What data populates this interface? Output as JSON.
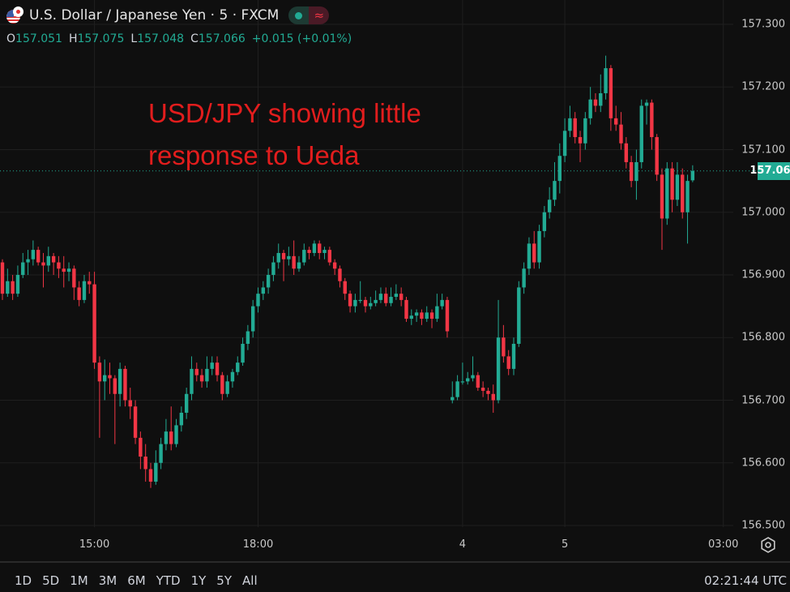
{
  "header": {
    "title": "U.S. Dollar / Japanese Yen · 5 · FXCM",
    "ohlc": {
      "o_label": "O",
      "o": "157.051",
      "h_label": "H",
      "h": "157.075",
      "l_label": "L",
      "l": "157.048",
      "c_label": "C",
      "c": "157.066",
      "change": "+0.015 (+0.01%)"
    },
    "icons": [
      "us-flag-icon",
      "japan-flag-icon",
      "market-open-dot-icon",
      "wave-icon"
    ]
  },
  "annotation": {
    "line1": "USD/JPY showing little",
    "line2": "response to Ueda"
  },
  "current_price": "157.066",
  "time_axis_settings_icon": "gear-icon",
  "bottom_bar": {
    "ranges": [
      "1D",
      "5D",
      "1M",
      "3M",
      "6M",
      "YTD",
      "1Y",
      "5Y",
      "All"
    ],
    "clock": "02:21:44 UTC"
  },
  "colors": {
    "background": "#0f0f0f",
    "up": "#22ab94",
    "down": "#f23645",
    "annotation": "#e21d1d",
    "grid": "#1f1f1f"
  },
  "chart_data": {
    "type": "candlestick",
    "title": "U.S. Dollar / Japanese Yen · 5 · FXCM",
    "interval": "5",
    "ylim": [
      156.5,
      157.3
    ],
    "y_ticks": [
      "157.300",
      "157.200",
      "157.100",
      "157.000",
      "156.900",
      "156.800",
      "156.700",
      "156.600",
      "156.500"
    ],
    "x_ticks": [
      {
        "label": "15:00",
        "index": 18
      },
      {
        "label": "18:00",
        "index": 50
      },
      {
        "label": "4",
        "index": 90
      },
      {
        "label": "5",
        "index": 110
      },
      {
        "label": "03:00",
        "index": 141
      }
    ],
    "grid": true,
    "candles_format": [
      "open",
      "high",
      "low",
      "close"
    ],
    "candles": [
      [
        156.92,
        156.925,
        156.86,
        156.87
      ],
      [
        156.87,
        156.91,
        156.865,
        156.89
      ],
      [
        156.89,
        156.9,
        156.86,
        156.87
      ],
      [
        156.87,
        156.915,
        156.865,
        156.9
      ],
      [
        156.9,
        156.935,
        156.895,
        156.92
      ],
      [
        156.92,
        156.94,
        156.9,
        156.925
      ],
      [
        156.925,
        156.955,
        156.915,
        156.94
      ],
      [
        156.94,
        156.945,
        156.915,
        156.92
      ],
      [
        156.92,
        156.935,
        156.88,
        156.915
      ],
      [
        156.915,
        156.945,
        156.905,
        156.93
      ],
      [
        156.93,
        156.935,
        156.9,
        156.92
      ],
      [
        156.92,
        156.93,
        156.895,
        156.91
      ],
      [
        156.91,
        156.93,
        156.88,
        156.905
      ],
      [
        156.905,
        156.92,
        156.89,
        156.91
      ],
      [
        156.91,
        156.915,
        156.86,
        156.88
      ],
      [
        156.88,
        156.89,
        156.85,
        156.86
      ],
      [
        156.86,
        156.9,
        156.855,
        156.89
      ],
      [
        156.89,
        156.905,
        156.87,
        156.885
      ],
      [
        156.885,
        156.905,
        156.75,
        156.76
      ],
      [
        156.76,
        156.77,
        156.64,
        156.73
      ],
      [
        156.73,
        156.765,
        156.7,
        156.74
      ],
      [
        156.74,
        156.76,
        156.71,
        156.735
      ],
      [
        156.735,
        156.74,
        156.63,
        156.71
      ],
      [
        156.71,
        156.76,
        156.69,
        156.75
      ],
      [
        156.75,
        156.755,
        156.69,
        156.7
      ],
      [
        156.7,
        156.72,
        156.67,
        156.69
      ],
      [
        156.69,
        156.7,
        156.63,
        156.64
      ],
      [
        156.64,
        156.65,
        156.59,
        156.61
      ],
      [
        156.61,
        156.63,
        156.57,
        156.59
      ],
      [
        156.59,
        156.6,
        156.56,
        156.57
      ],
      [
        156.57,
        156.62,
        156.565,
        156.6
      ],
      [
        156.6,
        156.64,
        156.59,
        156.63
      ],
      [
        156.63,
        156.67,
        156.62,
        156.65
      ],
      [
        156.65,
        156.69,
        156.62,
        156.63
      ],
      [
        156.63,
        156.67,
        156.625,
        156.66
      ],
      [
        156.66,
        156.69,
        156.65,
        156.68
      ],
      [
        156.68,
        156.72,
        156.67,
        156.71
      ],
      [
        156.71,
        156.77,
        156.7,
        156.75
      ],
      [
        156.75,
        156.76,
        156.73,
        156.74
      ],
      [
        156.74,
        156.75,
        156.72,
        156.73
      ],
      [
        156.73,
        156.77,
        156.72,
        156.75
      ],
      [
        156.75,
        156.77,
        156.74,
        156.76
      ],
      [
        156.76,
        156.77,
        156.73,
        156.74
      ],
      [
        156.74,
        156.745,
        156.7,
        156.71
      ],
      [
        156.71,
        156.74,
        156.705,
        156.73
      ],
      [
        156.73,
        156.75,
        156.72,
        156.745
      ],
      [
        156.745,
        156.77,
        156.74,
        156.76
      ],
      [
        156.76,
        156.8,
        156.755,
        156.79
      ],
      [
        156.79,
        156.82,
        156.78,
        156.81
      ],
      [
        156.81,
        156.86,
        156.8,
        156.85
      ],
      [
        156.85,
        156.88,
        156.84,
        156.87
      ],
      [
        156.87,
        156.89,
        156.86,
        156.88
      ],
      [
        156.88,
        156.91,
        156.87,
        156.9
      ],
      [
        156.9,
        156.93,
        156.89,
        156.92
      ],
      [
        156.92,
        156.95,
        156.91,
        156.935
      ],
      [
        156.935,
        156.94,
        156.89,
        156.925
      ],
      [
        156.925,
        156.945,
        156.915,
        156.93
      ],
      [
        156.93,
        156.955,
        156.9,
        156.91
      ],
      [
        156.91,
        156.93,
        156.905,
        156.92
      ],
      [
        156.92,
        156.95,
        156.915,
        156.94
      ],
      [
        156.94,
        156.945,
        156.925,
        156.935
      ],
      [
        156.935,
        156.955,
        156.93,
        156.95
      ],
      [
        156.95,
        156.955,
        156.925,
        156.935
      ],
      [
        156.935,
        156.945,
        156.925,
        156.94
      ],
      [
        156.94,
        156.945,
        156.915,
        156.92
      ],
      [
        156.92,
        156.925,
        156.9,
        156.91
      ],
      [
        156.91,
        156.915,
        156.88,
        156.89
      ],
      [
        156.89,
        156.895,
        156.86,
        156.87
      ],
      [
        156.87,
        156.875,
        156.84,
        156.85
      ],
      [
        156.85,
        156.87,
        156.84,
        156.86
      ],
      [
        156.86,
        156.89,
        156.855,
        156.86
      ],
      [
        156.86,
        156.865,
        156.84,
        156.85
      ],
      [
        156.85,
        156.865,
        156.845,
        156.855
      ],
      [
        156.855,
        156.875,
        156.85,
        156.86
      ],
      [
        156.86,
        156.88,
        156.855,
        156.87
      ],
      [
        156.87,
        156.88,
        156.85,
        156.855
      ],
      [
        156.855,
        156.88,
        156.85,
        156.865
      ],
      [
        156.865,
        156.885,
        156.86,
        156.87
      ],
      [
        156.87,
        156.88,
        156.85,
        156.86
      ],
      [
        156.86,
        156.865,
        156.825,
        156.83
      ],
      [
        156.83,
        156.845,
        156.82,
        156.835
      ],
      [
        156.835,
        156.845,
        156.825,
        156.84
      ],
      [
        156.84,
        156.845,
        156.82,
        156.83
      ],
      [
        156.83,
        156.85,
        156.825,
        156.84
      ],
      [
        156.84,
        156.845,
        156.815,
        156.83
      ],
      [
        156.83,
        156.87,
        156.825,
        156.85
      ],
      [
        156.85,
        156.87,
        156.845,
        156.86
      ],
      [
        156.86,
        156.865,
        156.8,
        156.81
      ],
      [
        156.7,
        156.73,
        156.695,
        156.705
      ],
      [
        156.705,
        156.74,
        156.7,
        156.73
      ],
      [
        156.73,
        156.76,
        156.725,
        156.73
      ],
      [
        156.73,
        156.745,
        156.725,
        156.735
      ],
      [
        156.735,
        156.77,
        156.73,
        156.74
      ],
      [
        156.74,
        156.745,
        156.715,
        156.72
      ],
      [
        156.72,
        156.73,
        156.705,
        156.715
      ],
      [
        156.715,
        156.72,
        156.7,
        156.71
      ],
      [
        156.71,
        156.725,
        156.68,
        156.7
      ],
      [
        156.7,
        156.86,
        156.695,
        156.8
      ],
      [
        156.8,
        156.82,
        156.76,
        156.77
      ],
      [
        156.77,
        156.78,
        156.74,
        156.75
      ],
      [
        156.75,
        156.8,
        156.74,
        156.79
      ],
      [
        156.79,
        156.89,
        156.785,
        156.88
      ],
      [
        156.88,
        156.92,
        156.87,
        156.91
      ],
      [
        156.91,
        156.96,
        156.9,
        156.95
      ],
      [
        156.95,
        156.97,
        156.91,
        156.92
      ],
      [
        156.92,
        156.98,
        156.91,
        156.97
      ],
      [
        156.97,
        157.01,
        156.96,
        157.0
      ],
      [
        157.0,
        157.04,
        156.99,
        157.02
      ],
      [
        157.02,
        157.08,
        157.01,
        157.05
      ],
      [
        157.05,
        157.11,
        157.03,
        157.09
      ],
      [
        157.09,
        157.15,
        157.08,
        157.13
      ],
      [
        157.13,
        157.17,
        157.12,
        157.15
      ],
      [
        157.15,
        157.16,
        157.11,
        157.12
      ],
      [
        157.12,
        157.13,
        157.08,
        157.11
      ],
      [
        157.11,
        157.16,
        157.1,
        157.15
      ],
      [
        157.15,
        157.2,
        157.14,
        157.18
      ],
      [
        157.18,
        157.19,
        157.16,
        157.17
      ],
      [
        157.17,
        157.22,
        157.16,
        157.19
      ],
      [
        157.19,
        157.25,
        157.18,
        157.23
      ],
      [
        157.23,
        157.235,
        157.13,
        157.15
      ],
      [
        157.15,
        157.17,
        157.13,
        157.14
      ],
      [
        157.14,
        157.16,
        157.1,
        157.11
      ],
      [
        157.11,
        157.12,
        157.07,
        157.08
      ],
      [
        157.08,
        157.09,
        157.04,
        157.05
      ],
      [
        157.05,
        157.1,
        157.02,
        157.08
      ],
      [
        157.08,
        157.18,
        157.07,
        157.17
      ],
      [
        157.17,
        157.18,
        157.14,
        157.175
      ],
      [
        157.175,
        157.18,
        157.1,
        157.12
      ],
      [
        157.12,
        157.125,
        157.05,
        157.06
      ],
      [
        157.06,
        157.07,
        156.94,
        156.99
      ],
      [
        156.99,
        157.08,
        156.98,
        157.07
      ],
      [
        157.07,
        157.08,
        157.0,
        157.02
      ],
      [
        157.02,
        157.08,
        157.01,
        157.06
      ],
      [
        157.06,
        157.07,
        156.99,
        157.0
      ],
      [
        157.0,
        157.06,
        156.95,
        157.05
      ],
      [
        157.051,
        157.075,
        157.048,
        157.066
      ]
    ]
  }
}
